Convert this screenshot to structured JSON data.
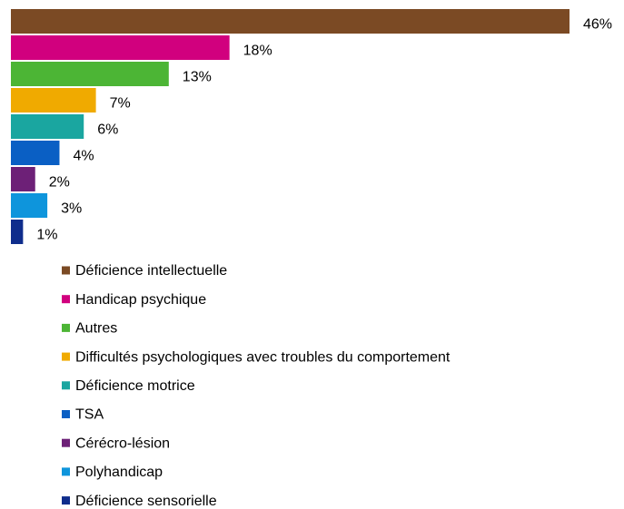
{
  "chart_data": {
    "type": "bar",
    "orientation": "horizontal",
    "categories": [
      "Déficience intellectuelle",
      "Handicap psychique",
      "Autres",
      "Difficultés psychologiques avec troubles du comportement",
      "Déficience motrice",
      "TSA",
      "Cérécro-lésion",
      "Polyhandicap",
      "Déficience sensorielle"
    ],
    "values": [
      46,
      18,
      13,
      7,
      6,
      4,
      2,
      3,
      1
    ],
    "value_labels": [
      "46%",
      "18%",
      "13%",
      "7%",
      "6%",
      "4%",
      "2%",
      "3%",
      "1%"
    ],
    "colors": [
      "#7b4a24",
      "#d1007e",
      "#4cb535",
      "#f0aa00",
      "#1aa6a0",
      "#0a5fc4",
      "#6d2077",
      "#0e95dc",
      "#0f2d8c"
    ]
  }
}
